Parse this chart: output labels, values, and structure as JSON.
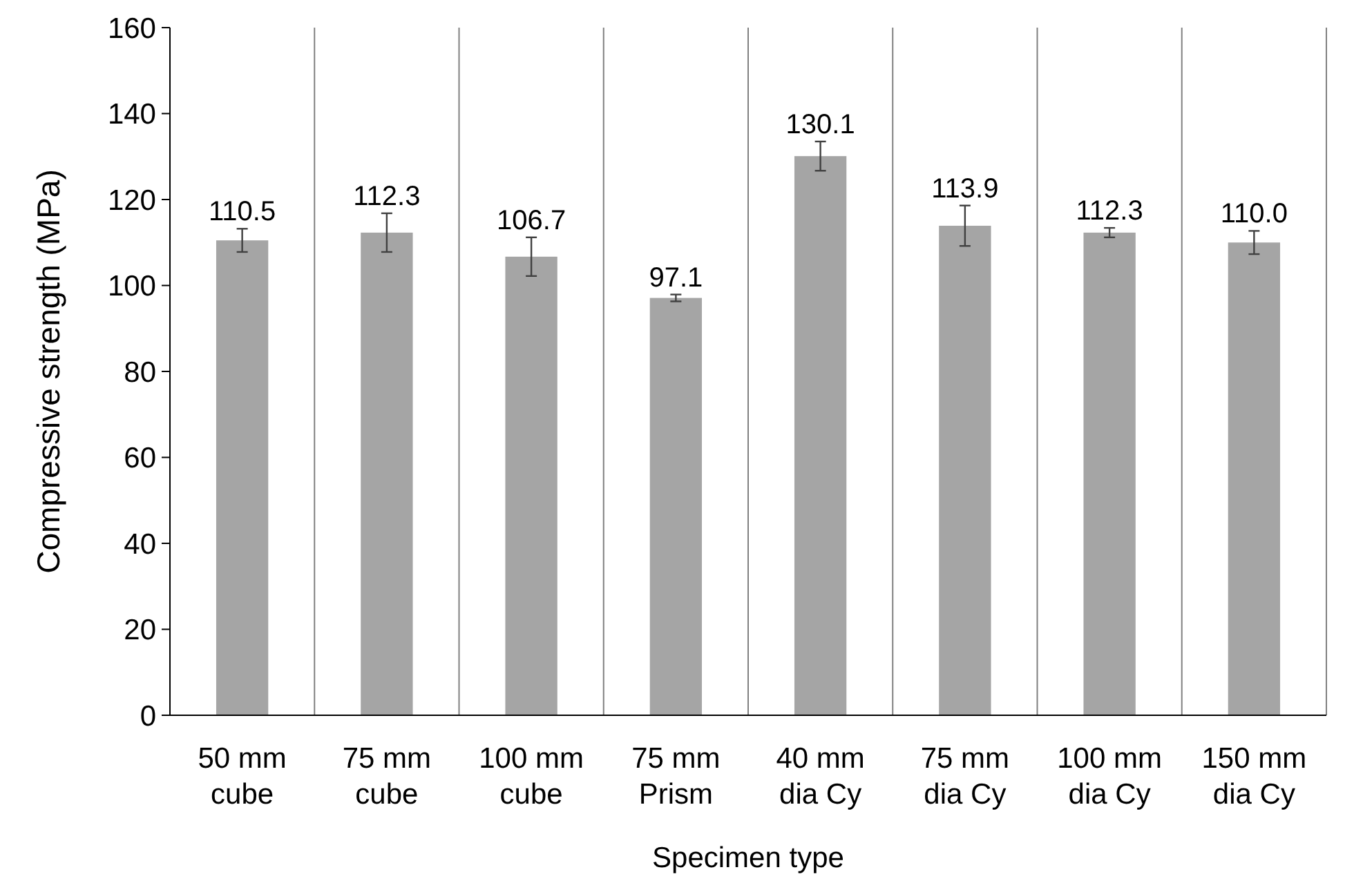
{
  "chart_data": {
    "type": "bar",
    "xlabel": "Specimen type",
    "ylabel": "Compressive strength (MPa)",
    "categories": [
      "50 mm cube",
      "75 mm cube",
      "100 mm cube",
      "75 mm Prism",
      "40 mm dia Cy",
      "75 mm dia Cy",
      "100 mm dia Cy",
      "150 mm dia Cy"
    ],
    "values": [
      110.5,
      112.3,
      106.7,
      97.1,
      130.1,
      113.9,
      112.3,
      110.0
    ],
    "errors": [
      2.7,
      4.5,
      4.5,
      0.8,
      3.4,
      4.7,
      1.1,
      2.7
    ],
    "value_labels": [
      "110.5",
      "112.3",
      "106.7",
      "97.1",
      "130.1",
      "113.9",
      "112.3",
      "110.0"
    ],
    "color": "#a5a5a5",
    "ylim": [
      0,
      160
    ],
    "yticks": [
      0,
      20,
      40,
      60,
      80,
      100,
      120,
      140,
      160
    ],
    "grid": "x"
  }
}
